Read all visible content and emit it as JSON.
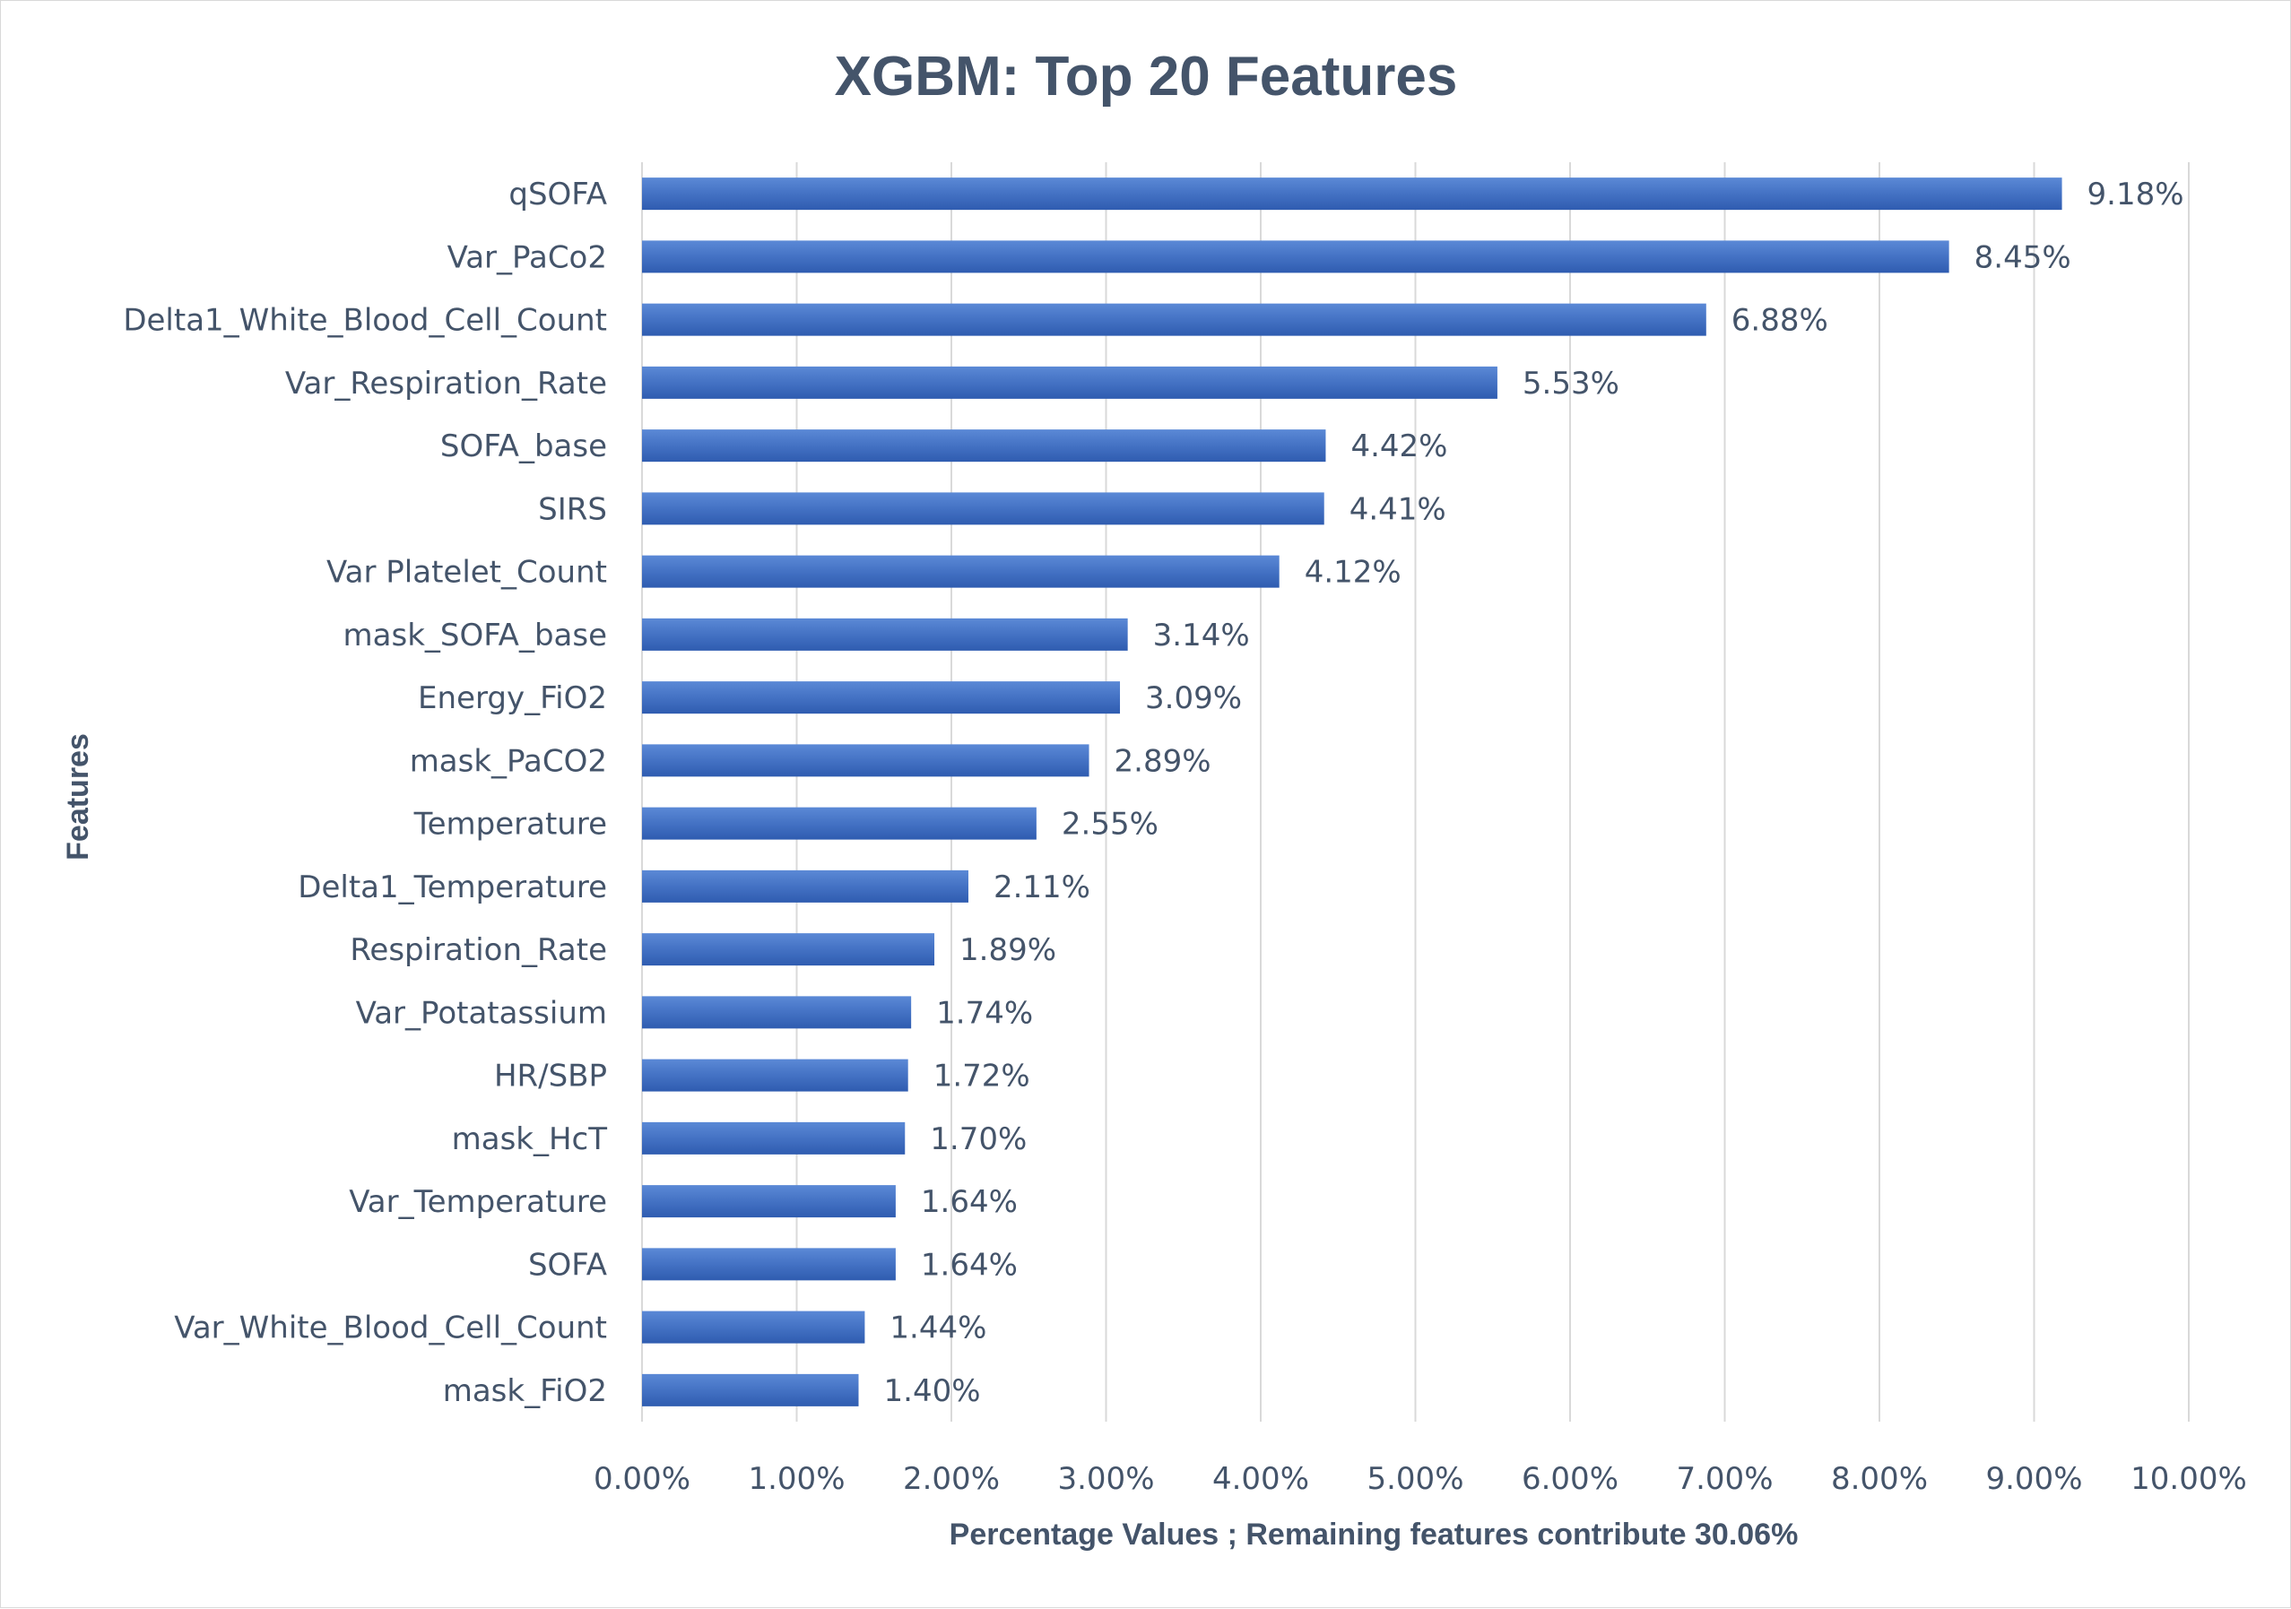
{
  "chart_data": {
    "type": "bar",
    "orientation": "horizontal",
    "title": "XGBM:  Top 20 Features",
    "xlabel": "Percentage Values ;  Remaining features contribute 30.06%",
    "ylabel": "Features",
    "xlim": [
      0,
      10
    ],
    "x_ticks": [
      0,
      1,
      2,
      3,
      4,
      5,
      6,
      7,
      8,
      9,
      10
    ],
    "x_tick_labels": [
      "0.00%",
      "1.00%",
      "2.00%",
      "3.00%",
      "4.00%",
      "5.00%",
      "6.00%",
      "7.00%",
      "8.00%",
      "9.00%",
      "10.00%"
    ],
    "grid": true,
    "legend": "none",
    "bar_color": "#4472c4",
    "categories": [
      "qSOFA",
      "Var_PaCo2",
      "Delta1_White_Blood_Cell_Count",
      "Var_Respiration_Rate",
      "SOFA_base",
      "SIRS",
      "Var Platelet_Count",
      "mask_SOFA_base",
      "Energy_FiO2",
      "mask_PaCO2",
      "Temperature",
      "Delta1_Temperature",
      "Respiration_Rate",
      "Var_Potatassium",
      "HR/SBP",
      "mask_HcT",
      "Var_Temperature",
      "SOFA",
      "Var_White_Blood_Cell_Count",
      "mask_FiO2"
    ],
    "values": [
      9.18,
      8.45,
      6.88,
      5.53,
      4.42,
      4.41,
      4.12,
      3.14,
      3.09,
      2.89,
      2.55,
      2.11,
      1.89,
      1.74,
      1.72,
      1.7,
      1.64,
      1.64,
      1.44,
      1.4
    ],
    "data_labels": [
      "9.18%",
      "8.45%",
      "6.88%",
      "5.53%",
      "4.42%",
      "4.41%",
      "4.12%",
      "3.14%",
      "3.09%",
      "2.89%",
      "2.55%",
      "2.11%",
      "1.89%",
      "1.74%",
      "1.72%",
      "1.70%",
      "1.64%",
      "1.64%",
      "1.44%",
      "1.40%"
    ]
  }
}
